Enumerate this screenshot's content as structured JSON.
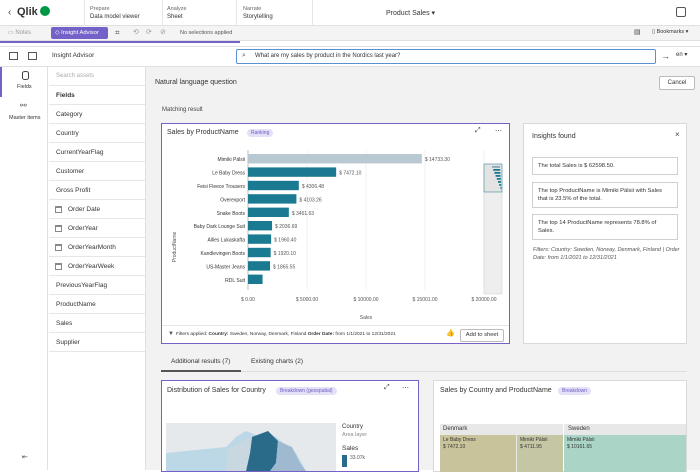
{
  "app": {
    "logo": "Qlik",
    "nav": [
      {
        "step": "Prepare",
        "label": "Data model viewer"
      },
      {
        "step": "Analyze",
        "label": "Sheet"
      },
      {
        "step": "Narrate",
        "label": "Storytelling"
      }
    ],
    "title": "Product Sales"
  },
  "toolbar": {
    "notes": "Notes",
    "insight": "Insight Advisor",
    "selections": "No selections applied",
    "bookmarks": "Bookmarks"
  },
  "ia": {
    "title": "Insight Advisor",
    "query": "What are my sales by product in the Nordics last year?",
    "lang": "en",
    "cancel": "Cancel"
  },
  "sidebar": {
    "fields": "Fields",
    "master": "Master items"
  },
  "fields": {
    "search": "Search assets",
    "header": "Fields",
    "items": [
      {
        "label": "Category"
      },
      {
        "label": "Country"
      },
      {
        "label": "CurrentYearFlag"
      },
      {
        "label": "Customer"
      },
      {
        "label": "Gross Profit"
      },
      {
        "label": "Order Date"
      },
      {
        "label": "OrderYear"
      },
      {
        "label": "OrderYearMonth"
      },
      {
        "label": "OrderYearWeek"
      },
      {
        "label": "PreviousYearFlag"
      },
      {
        "label": "ProductName"
      },
      {
        "label": "Sales"
      },
      {
        "label": "Supplier"
      }
    ]
  },
  "nlq": {
    "heading": "Natural language question",
    "matching": "Matching result"
  },
  "chart": {
    "title": "Sales by ProductName",
    "badge": "Ranking",
    "filters_prefix": "Filters applied:",
    "filters_country_label": "Country:",
    "filters_country": "Sweden, Norway, Denmark, Finland",
    "filters_date_label": "Order Date:",
    "filters_date": "from 1/1/2021 to 12/31/2021",
    "add_button": "Add to sheet"
  },
  "chart_data": {
    "type": "bar",
    "orientation": "horizontal",
    "title": "Sales by ProductName",
    "xlabel": "Sales",
    "ylabel": "ProductName",
    "xlim": [
      0,
      20000
    ],
    "x_ticks": [
      "$ 0.00",
      "$ 5000.00",
      "$ 10000.00",
      "$ 15001.00",
      "$ 20000.00"
    ],
    "categories": [
      "Mimiki Pälsii",
      "Le Baby Dress",
      "Feisi Fleece Trousers",
      "Overexport",
      "Snake Boots",
      "Baby Dark Lounge Suit",
      "Allies Lukaskafta",
      "Kandlevingen Boots",
      "US-Master Jeans",
      "RDL Suit"
    ],
    "values": [
      14733.3,
      7472.1,
      4306.48,
      4103.26,
      3461.63,
      2036.69,
      1960.4,
      1920.1,
      1865.55,
      1234
    ],
    "labels": [
      "$ 14733.30",
      "$ 7472.10",
      "$ 4306.48",
      "$ 4103.26",
      "$ 3461.63",
      "$ 2036.69",
      "$ 1960.40",
      "$ 1920.10",
      "$ 1865.55",
      ""
    ],
    "colors": {
      "first": "#b9c9d3",
      "rest": "#1a7a91"
    }
  },
  "insights": {
    "title": "Insights found",
    "items": [
      "The total Sales is $ 62598.50.",
      "The top ProductName is Mimiki Pälsii with Sales that is 23.5% of the total.",
      "The top 14 ProductName represents 78.8% of Sales."
    ],
    "filters": "Filters: Country: Sweden, Norway, Denmark, Finland | Order Date: from 1/1/2021 to 12/31/2021"
  },
  "tabs": [
    {
      "label": "Additional results (7)"
    },
    {
      "label": "Existing charts (2)"
    }
  ],
  "card2": {
    "title": "Distribution of Sales for Country",
    "badge": "Breakdown (geospatial)",
    "legend_title": "Country",
    "legend_sub": "Area layer",
    "legend_measure": "Sales",
    "legend_value": "33.07k"
  },
  "card3": {
    "title": "Sales by Country and ProductName",
    "badge": "Breakdown",
    "countries": [
      "Denmark",
      "Sweden"
    ],
    "cells": [
      {
        "name": "Le Baby Dress",
        "value": "$ 7472.10"
      },
      {
        "name": "Mimiki Pälsii",
        "value": "$ 4711.95"
      },
      {
        "name": "Mimiki Pälsii",
        "value": "$ 10161.65"
      }
    ]
  }
}
